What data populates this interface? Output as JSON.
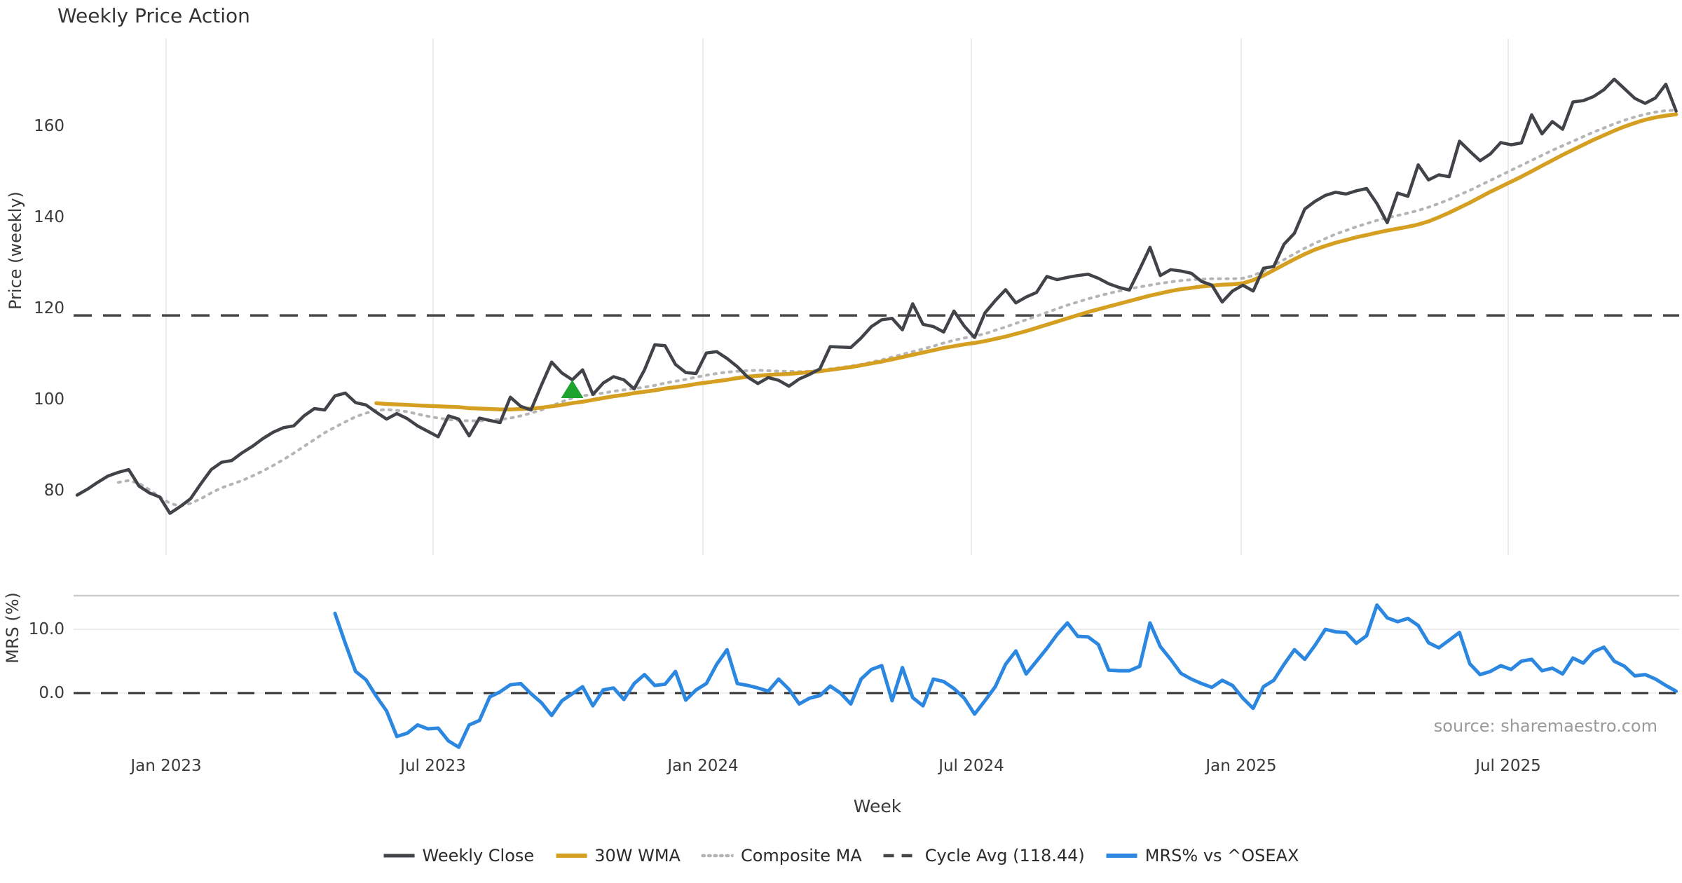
{
  "title": "Weekly Price Action",
  "xlabel": "Week",
  "xticks": [
    "Jan 2023",
    "Jul 2023",
    "Jan 2024",
    "Jul 2024",
    "Jan 2025",
    "Jul 2025"
  ],
  "source": "source: sharemaestro.com",
  "top_chart": {
    "ylabel": "Price (weekly)",
    "yticks": [
      "160",
      "140",
      "120",
      "100",
      "80"
    ],
    "ytick_values": [
      160,
      140,
      120,
      100,
      80
    ],
    "cycle_avg": 118.44
  },
  "bottom_chart": {
    "ylabel": "MRS (%)",
    "yticks": [
      "10.0",
      "0.0"
    ],
    "ytick_values": [
      10.0,
      0.0
    ]
  },
  "legend": {
    "items": [
      {
        "label": "Weekly Close",
        "style": "solid",
        "color": "#404348"
      },
      {
        "label": "30W WMA",
        "style": "solid",
        "color": "#d5a021"
      },
      {
        "label": "Composite MA",
        "style": "dotted",
        "color": "#b5b5b5"
      },
      {
        "label": "Cycle Avg (118.44)",
        "style": "dashed",
        "color": "#474747"
      },
      {
        "label": "MRS% vs ^OSEAX",
        "style": "solid",
        "color": "#2b87e0"
      }
    ]
  },
  "colors": {
    "close": "#404348",
    "wma": "#d5a021",
    "composite": "#b5b5b5",
    "cycle": "#474747",
    "mrs": "#2b87e0",
    "signal_marker": "#1fa32f",
    "gridline": "#ebebeb",
    "panel_border": "#cccccc"
  },
  "chart_data": {
    "type": "line",
    "x_axis": {
      "label": "Week",
      "tick_labels": [
        "Jan 2023",
        "Jul 2023",
        "Jan 2024",
        "Jul 2024",
        "Jan 2025",
        "Jul 2025"
      ],
      "unit": "weekly"
    },
    "top_panel": {
      "ylabel": "Price (weekly)",
      "ylim": [
        66,
        179
      ],
      "yticks": [
        80,
        100,
        120,
        140,
        160
      ],
      "grid": "vertical-only",
      "cycle_avg": 118.44,
      "buy_signal_marker": {
        "shape": "triangle-up",
        "week_index": 48,
        "value": 102.3
      },
      "series": [
        {
          "name": "Weekly Close",
          "values": [
            79,
            80.3,
            81.8,
            83.2,
            84,
            84.6,
            81,
            79.5,
            78.6,
            75,
            76.5,
            78.2,
            81.5,
            84.6,
            86.2,
            86.6,
            88.3,
            89.7,
            91.4,
            92.8,
            93.8,
            94.2,
            96.4,
            98,
            97.7,
            100.8,
            101.4,
            99.3,
            98.8,
            97.2,
            95.7,
            96.9,
            95.8,
            94.2,
            93,
            91.8,
            96.4,
            95.7,
            92,
            95.9,
            95.4,
            94.9,
            100.5,
            98.5,
            97.7,
            103.1,
            108.2,
            105.8,
            104.3,
            106.5,
            101.1,
            103.6,
            105,
            104.3,
            102.3,
            106.5,
            112,
            111.8,
            107.7,
            105.9,
            105.7,
            110.2,
            110.5,
            109,
            107.2,
            104.9,
            103.5,
            104.8,
            104.2,
            102.9,
            104.5,
            105.5,
            106.7,
            111.6,
            111.5,
            111.4,
            113.5,
            116,
            117.5,
            117.8,
            115.3,
            121,
            116.5,
            116,
            114.8,
            119.4,
            116.1,
            113.6,
            119,
            121.7,
            124.1,
            121.2,
            122.5,
            123.5,
            127,
            126.3,
            126.8,
            127.2,
            127.5,
            126.6,
            125.4,
            124.6,
            124,
            128.6,
            133.4,
            127.2,
            128.5,
            128.2,
            127.7,
            125.9,
            125.1,
            121.4,
            123.8,
            125.1,
            123.8,
            128.8,
            129.2,
            134.1,
            136.5,
            141.8,
            143.5,
            144.8,
            145.5,
            145.1,
            145.8,
            146.3,
            143,
            138.8,
            145.3,
            144.6,
            151.5,
            148.2,
            149.3,
            148.9,
            156.7,
            154.5,
            152.4,
            153.9,
            156.4,
            155.9,
            156.3,
            162.5,
            158.3,
            161,
            159.3,
            165.3,
            165.6,
            166.5,
            168,
            170.3,
            168.2,
            166.1,
            165,
            166.2,
            169.2,
            163.3
          ]
        },
        {
          "name": "30W WMA",
          "values": [
            null,
            null,
            null,
            null,
            null,
            null,
            null,
            null,
            null,
            null,
            null,
            null,
            null,
            null,
            null,
            null,
            null,
            null,
            null,
            null,
            null,
            null,
            null,
            null,
            null,
            null,
            null,
            null,
            null,
            99.2,
            99,
            98.9,
            98.8,
            98.7,
            98.6,
            98.5,
            98.4,
            98.3,
            98.1,
            98,
            97.9,
            97.8,
            97.8,
            97.9,
            98,
            98.2,
            98.5,
            98.8,
            99.2,
            99.5,
            99.9,
            100.3,
            100.7,
            101,
            101.4,
            101.7,
            102,
            102.4,
            102.7,
            103,
            103.4,
            103.7,
            104,
            104.3,
            104.7,
            105,
            105.2,
            105.4,
            105.5,
            105.6,
            105.8,
            106,
            106.2,
            106.5,
            106.8,
            107.1,
            107.5,
            107.9,
            108.3,
            108.8,
            109.3,
            109.8,
            110.3,
            110.8,
            111.3,
            111.7,
            112.1,
            112.4,
            112.8,
            113.3,
            113.8,
            114.4,
            115,
            115.7,
            116.4,
            117.1,
            117.8,
            118.5,
            119.2,
            119.8,
            120.4,
            121,
            121.6,
            122.2,
            122.8,
            123.3,
            123.8,
            124.2,
            124.5,
            124.8,
            125,
            125.2,
            125.3,
            125.5,
            126.2,
            127.2,
            128.4,
            129.6,
            130.8,
            131.9,
            132.9,
            133.7,
            134.4,
            135,
            135.6,
            136.1,
            136.6,
            137.1,
            137.5,
            137.9,
            138.4,
            139.1,
            140,
            141,
            142.1,
            143.2,
            144.4,
            145.6,
            146.7,
            147.8,
            148.9,
            150.1,
            151.3,
            152.5,
            153.7,
            154.8,
            155.9,
            157,
            158,
            159,
            159.9,
            160.7,
            161.4,
            161.9,
            162.3,
            162.6
          ]
        },
        {
          "name": "Composite MA",
          "values": [
            null,
            null,
            null,
            null,
            81.8,
            82.2,
            81.6,
            80.2,
            78.6,
            77.2,
            76.6,
            77.2,
            78.2,
            79.5,
            80.6,
            81.4,
            82.2,
            83.2,
            84.3,
            85.5,
            86.8,
            88.2,
            89.7,
            91.2,
            92.7,
            93.9,
            95.1,
            96.2,
            97,
            97.6,
            97.8,
            97.6,
            97.3,
            96.8,
            96.3,
            95.9,
            95.6,
            95.4,
            95.3,
            95.3,
            95.4,
            95.6,
            95.9,
            96.4,
            97,
            97.7,
            98.6,
            99.5,
            100.3,
            100.8,
            101.1,
            101.4,
            101.8,
            102.1,
            102.4,
            102.7,
            103.1,
            103.6,
            104,
            104.4,
            104.9,
            105.3,
            105.7,
            106,
            106.2,
            106.3,
            106.4,
            106.3,
            106.2,
            106.2,
            106.1,
            106.2,
            106.4,
            106.7,
            107,
            107.3,
            107.7,
            108.2,
            108.7,
            109.3,
            109.9,
            110.5,
            111.1,
            111.7,
            112.4,
            113,
            113.5,
            113.9,
            114.4,
            115.2,
            115.9,
            116.7,
            117.5,
            118.3,
            119.1,
            119.9,
            120.7,
            121.4,
            122.1,
            122.7,
            123.3,
            123.8,
            124.3,
            124.7,
            125.1,
            125.5,
            125.8,
            126.1,
            126.3,
            126.4,
            126.5,
            126.5,
            126.5,
            126.6,
            127.2,
            128.2,
            129.4,
            130.7,
            132,
            133.2,
            134.3,
            135.3,
            136.3,
            137.1,
            137.9,
            138.6,
            139.3,
            139.9,
            140.4,
            140.9,
            141.5,
            142.2,
            143,
            143.9,
            144.9,
            145.9,
            147,
            148.1,
            149.2,
            150.3,
            151.4,
            152.5,
            153.6,
            154.7,
            155.7,
            156.7,
            157.7,
            158.7,
            159.6,
            160.5,
            161.3,
            162,
            162.6,
            163.1,
            163.4,
            163.5
          ]
        }
      ]
    },
    "bottom_panel": {
      "ylabel": "MRS (%)",
      "ylim": [
        -9.5,
        15.3
      ],
      "yticks": [
        0.0,
        10.0
      ],
      "zero_line": "dashed",
      "series": [
        {
          "name": "MRS% vs ^OSEAX",
          "values": [
            null,
            null,
            null,
            null,
            null,
            null,
            null,
            null,
            null,
            null,
            null,
            null,
            null,
            null,
            null,
            null,
            null,
            null,
            null,
            null,
            null,
            null,
            null,
            null,
            null,
            12.5,
            7.8,
            3.4,
            2.1,
            -0.5,
            -2.8,
            -6.8,
            -6.3,
            -5,
            -5.6,
            -5.5,
            -7.5,
            -8.5,
            -5,
            -4.3,
            -0.6,
            0.2,
            1.3,
            1.5,
            -0.1,
            -1.5,
            -3.5,
            -1.2,
            -0.1,
            1,
            -2,
            0.5,
            0.8,
            -1,
            1.5,
            2.9,
            1.2,
            1.4,
            3.4,
            -1.1,
            0.5,
            1.5,
            4.5,
            6.8,
            1.5,
            1.2,
            0.8,
            0.3,
            2.2,
            0.6,
            -1.7,
            -0.8,
            -0.4,
            1.1,
            0,
            -1.7,
            2.2,
            3.7,
            4.3,
            -1.2,
            4,
            -0.7,
            -2,
            2.2,
            1.8,
            0.7,
            -0.8,
            -3.3,
            -1.2,
            1,
            4.5,
            6.6,
            3,
            5,
            7,
            9.2,
            11,
            8.9,
            8.8,
            7.6,
            3.6,
            3.5,
            3.5,
            4.2,
            11,
            7.3,
            5.3,
            3.1,
            2.2,
            1.5,
            0.9,
            2,
            1.2,
            -0.8,
            -2.4,
            1,
            2,
            4.5,
            6.8,
            5.3,
            7.5,
            10,
            9.6,
            9.5,
            7.8,
            9,
            13.8,
            11.8,
            11.2,
            11.7,
            10.6,
            7.9,
            7.1,
            8.3,
            9.5,
            4.6,
            2.9,
            3.4,
            4.3,
            3.7,
            5,
            5.3,
            3.5,
            3.9,
            3,
            5.5,
            4.7,
            6.5,
            7.2,
            5,
            4.2,
            2.7,
            2.9,
            2.2,
            1.2,
            0.3
          ]
        }
      ]
    }
  }
}
